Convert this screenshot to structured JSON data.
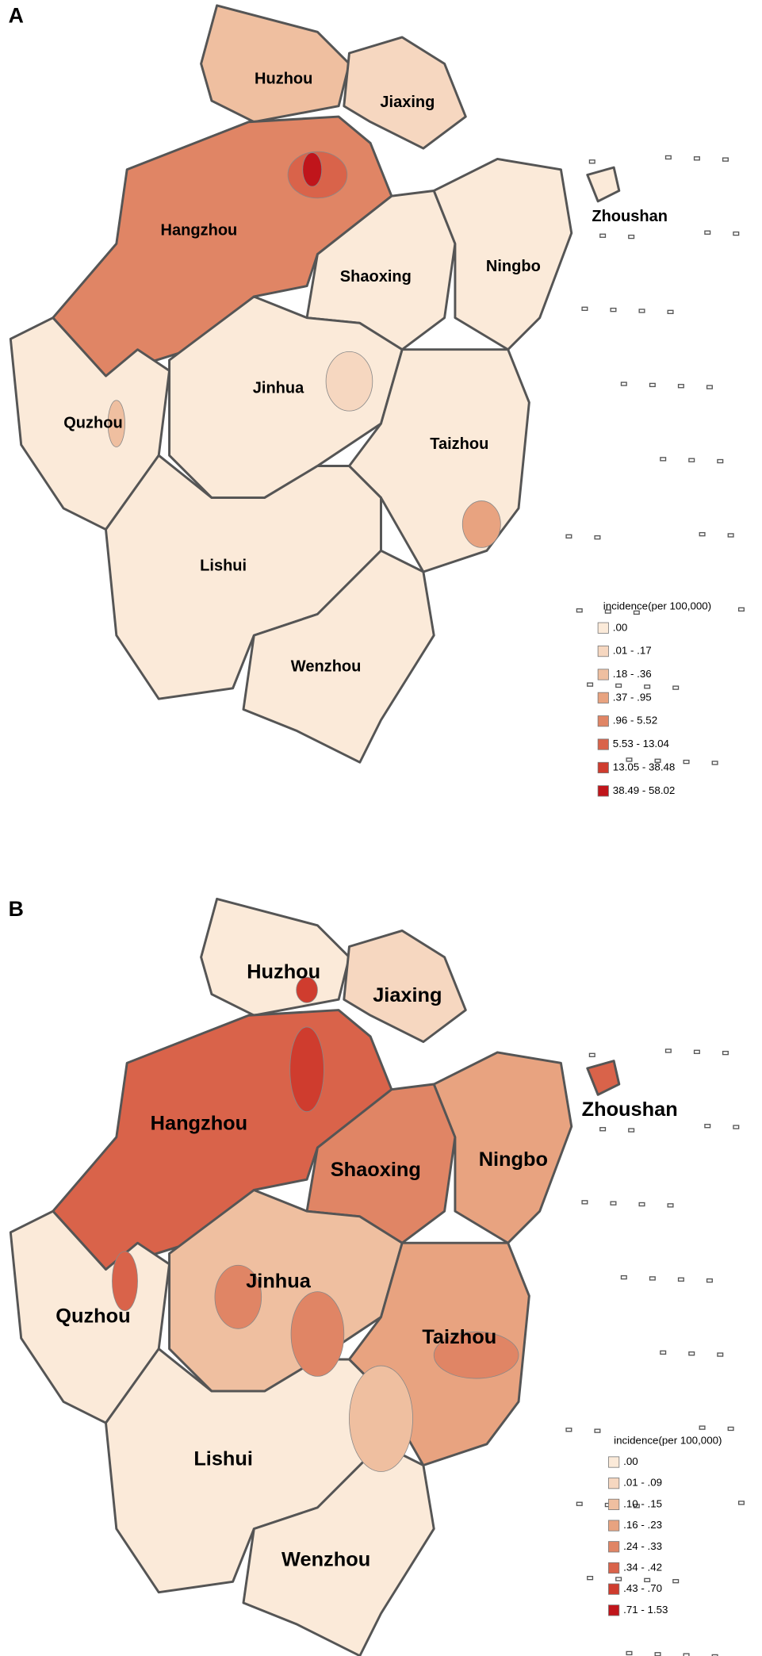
{
  "panels": [
    {
      "label": "A",
      "cities": [
        "Huzhou",
        "Jiaxing",
        "Hangzhou",
        "Shaoxing",
        "Ningbo",
        "Zhoushan",
        "Jinhua",
        "Quzhou",
        "Taizhou",
        "Lishui",
        "Wenzhou"
      ],
      "legend": {
        "title": "incidence(per 100,000)",
        "items": [
          {
            "label": ".00",
            "color": "#fbead9"
          },
          {
            "label": ".01 - .17",
            "color": "#f6d7c0"
          },
          {
            "label": ".18 - .36",
            "color": "#efbfa0"
          },
          {
            "label": ".37 - .95",
            "color": "#e8a380"
          },
          {
            "label": ".96 - 5.52",
            "color": "#e08565"
          },
          {
            "label": "5.53 - 13.04",
            "color": "#d9634a"
          },
          {
            "label": "13.05 - 38.48",
            "color": "#cf3c2e"
          },
          {
            "label": "38.49 - 58.02",
            "color": "#c0151b"
          }
        ]
      }
    },
    {
      "label": "B",
      "cities": [
        "Huzhou",
        "Jiaxing",
        "Hangzhou",
        "Shaoxing",
        "Ningbo",
        "Zhoushan",
        "Jinhua",
        "Quzhou",
        "Taizhou",
        "Lishui",
        "Wenzhou"
      ],
      "legend": {
        "title": "incidence(per 100,000)",
        "items": [
          {
            "label": ".00",
            "color": "#fbead9"
          },
          {
            "label": ".01 - .09",
            "color": "#f6d7c0"
          },
          {
            "label": ".10 - .15",
            "color": "#efbfa0"
          },
          {
            "label": ".16 - .23",
            "color": "#e8a380"
          },
          {
            "label": ".24 - .33",
            "color": "#e08565"
          },
          {
            "label": ".34 - .42",
            "color": "#d9634a"
          },
          {
            "label": ".43 - .70",
            "color": "#cf3c2e"
          },
          {
            "label": ".71 - 1.53",
            "color": "#c0151b"
          }
        ]
      }
    }
  ]
}
